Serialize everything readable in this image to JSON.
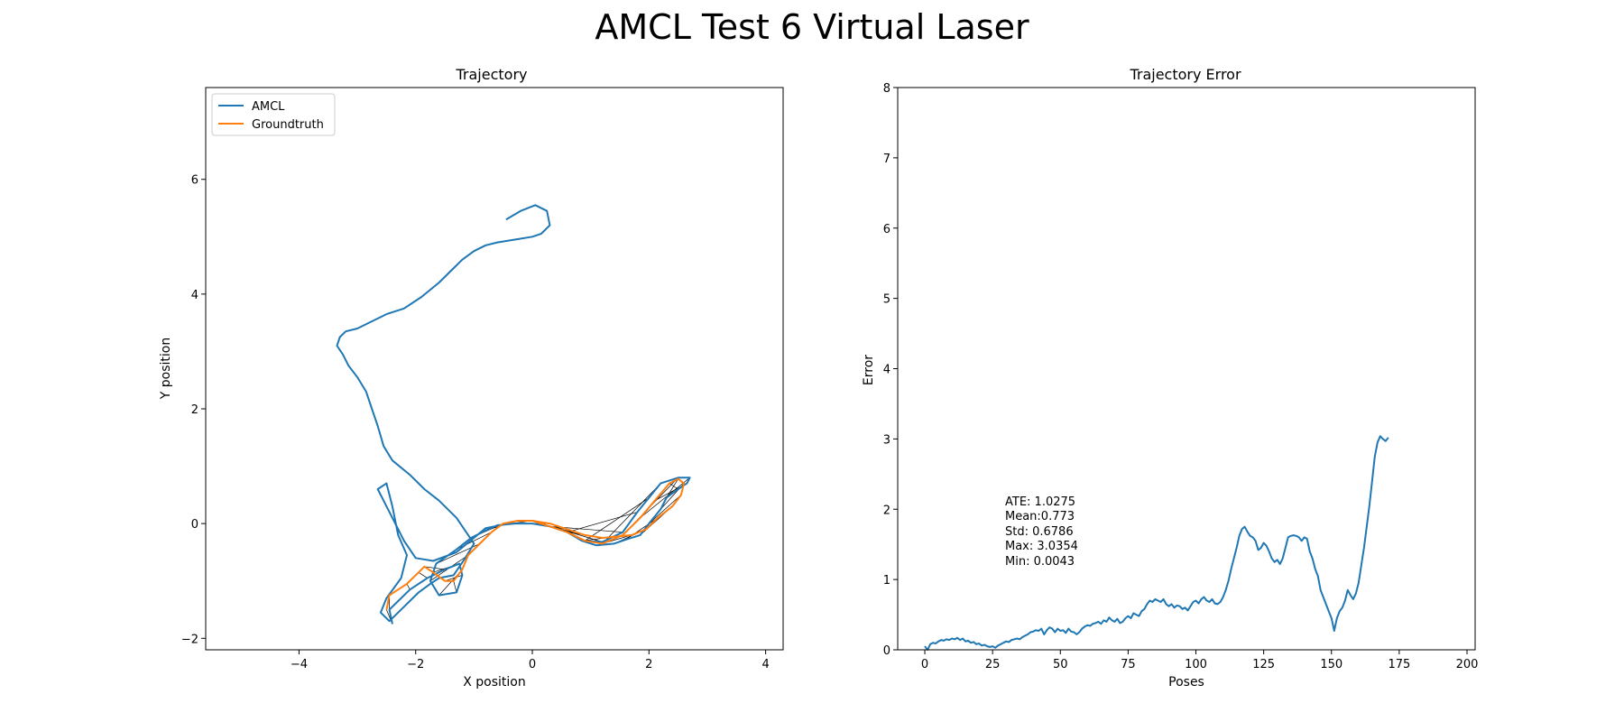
{
  "figure_title": "AMCL Test 6 Virtual Laser",
  "colors": {
    "amcl": "#1f77b4",
    "groundtruth": "#ff7f0e",
    "connector": "#000000"
  },
  "chart_data": [
    {
      "type": "line",
      "title": "Trajectory",
      "xlabel": "X position",
      "ylabel": "Y position",
      "xlim": [
        -5.6,
        4.3
      ],
      "ylim": [
        -2.2,
        7.6
      ],
      "xticks": [
        -4,
        -2,
        0,
        2,
        4
      ],
      "yticks": [
        -2,
        0,
        2,
        4,
        6
      ],
      "grid": false,
      "legend": {
        "position": "top-left",
        "entries": [
          "AMCL",
          "Groundtruth"
        ]
      },
      "connectors": true,
      "series": [
        {
          "name": "AMCL",
          "color": "#1f77b4",
          "points": [
            [
              -2.4,
              -1.75
            ],
            [
              -2.45,
              -1.5
            ],
            [
              -2.1,
              -1.15
            ],
            [
              -1.8,
              -0.95
            ],
            [
              -1.5,
              -0.8
            ],
            [
              -1.25,
              -0.7
            ],
            [
              -1.2,
              -0.9
            ],
            [
              -1.3,
              -1.2
            ],
            [
              -1.6,
              -1.25
            ],
            [
              -1.75,
              -1.0
            ],
            [
              -1.65,
              -0.7
            ],
            [
              -1.3,
              -0.45
            ],
            [
              -1.05,
              -0.25
            ],
            [
              -0.8,
              -0.12
            ],
            [
              -0.6,
              -0.03
            ],
            [
              -0.3,
              0.0
            ],
            [
              0.0,
              0.0
            ],
            [
              0.3,
              -0.05
            ],
            [
              0.6,
              -0.15
            ],
            [
              0.85,
              -0.3
            ],
            [
              1.1,
              -0.38
            ],
            [
              1.4,
              -0.35
            ],
            [
              1.6,
              -0.28
            ],
            [
              1.85,
              -0.2
            ],
            [
              2.0,
              0.0
            ],
            [
              2.2,
              0.25
            ],
            [
              2.3,
              0.45
            ],
            [
              2.5,
              0.6
            ],
            [
              2.65,
              0.7
            ],
            [
              2.7,
              0.8
            ],
            [
              2.5,
              0.8
            ],
            [
              2.2,
              0.7
            ],
            [
              2.0,
              0.45
            ],
            [
              1.8,
              0.2
            ],
            [
              1.55,
              -0.15
            ],
            [
              1.2,
              -0.32
            ],
            [
              0.9,
              -0.3
            ],
            [
              0.6,
              -0.15
            ],
            [
              0.3,
              -0.05
            ],
            [
              0.0,
              0.0
            ],
            [
              -0.4,
              0.0
            ],
            [
              -0.8,
              -0.08
            ],
            [
              -1.3,
              -0.5
            ],
            [
              -1.7,
              -0.65
            ],
            [
              -2.0,
              -0.6
            ],
            [
              -2.2,
              -0.3
            ],
            [
              -2.35,
              0.0
            ],
            [
              -2.5,
              0.3
            ],
            [
              -2.65,
              0.6
            ],
            [
              -2.5,
              0.7
            ],
            [
              -2.4,
              0.3
            ],
            [
              -2.3,
              -0.2
            ],
            [
              -2.15,
              -0.55
            ],
            [
              -2.25,
              -0.95
            ],
            [
              -2.5,
              -1.3
            ],
            [
              -2.6,
              -1.55
            ],
            [
              -2.45,
              -1.7
            ],
            [
              -2.2,
              -1.45
            ],
            [
              -1.95,
              -1.2
            ],
            [
              -1.75,
              -1.05
            ],
            [
              -1.6,
              -0.95
            ],
            [
              -1.35,
              -0.9
            ],
            [
              -1.15,
              -0.6
            ],
            [
              -1.0,
              -0.35
            ],
            [
              -1.3,
              0.1
            ],
            [
              -1.6,
              0.4
            ],
            [
              -1.85,
              0.6
            ],
            [
              -2.1,
              0.85
            ],
            [
              -2.4,
              1.1
            ],
            [
              -2.55,
              1.35
            ],
            [
              -2.65,
              1.7
            ],
            [
              -2.75,
              2.0
            ],
            [
              -2.85,
              2.3
            ],
            [
              -3.0,
              2.55
            ],
            [
              -3.15,
              2.75
            ],
            [
              -3.25,
              2.95
            ],
            [
              -3.35,
              3.1
            ],
            [
              -3.3,
              3.25
            ],
            [
              -3.2,
              3.35
            ],
            [
              -3.0,
              3.4
            ],
            [
              -2.8,
              3.5
            ],
            [
              -2.5,
              3.65
            ],
            [
              -2.2,
              3.75
            ],
            [
              -1.9,
              3.95
            ],
            [
              -1.6,
              4.2
            ],
            [
              -1.4,
              4.4
            ],
            [
              -1.2,
              4.6
            ],
            [
              -1.0,
              4.75
            ],
            [
              -0.8,
              4.85
            ],
            [
              -0.6,
              4.9
            ],
            [
              -0.3,
              4.95
            ],
            [
              0.0,
              5.0
            ],
            [
              0.15,
              5.05
            ],
            [
              0.3,
              5.2
            ],
            [
              0.25,
              5.45
            ],
            [
              0.05,
              5.55
            ],
            [
              -0.2,
              5.45
            ],
            [
              -0.45,
              5.3
            ]
          ]
        },
        {
          "name": "Groundtruth",
          "color": "#ff7f0e",
          "points": [
            [
              -2.5,
              -1.5
            ],
            [
              -2.45,
              -1.25
            ],
            [
              -2.15,
              -1.05
            ],
            [
              -1.95,
              -0.85
            ],
            [
              -1.85,
              -0.75
            ],
            [
              -1.7,
              -0.85
            ],
            [
              -1.5,
              -1.0
            ],
            [
              -1.35,
              -1.0
            ],
            [
              -1.2,
              -0.8
            ],
            [
              -1.1,
              -0.55
            ],
            [
              -0.9,
              -0.35
            ],
            [
              -0.7,
              -0.15
            ],
            [
              -0.5,
              0.0
            ],
            [
              -0.25,
              0.05
            ],
            [
              0.0,
              0.05
            ],
            [
              0.3,
              0.0
            ],
            [
              0.6,
              -0.1
            ],
            [
              0.9,
              -0.2
            ],
            [
              1.2,
              -0.25
            ],
            [
              1.5,
              -0.22
            ],
            [
              1.7,
              -0.2
            ],
            [
              1.95,
              -0.1
            ],
            [
              2.15,
              0.1
            ],
            [
              2.4,
              0.3
            ],
            [
              2.55,
              0.5
            ],
            [
              2.6,
              0.7
            ],
            [
              2.5,
              0.78
            ],
            [
              2.35,
              0.7
            ],
            [
              2.1,
              0.4
            ],
            [
              1.85,
              0.1
            ],
            [
              1.55,
              -0.2
            ],
            [
              1.2,
              -0.35
            ],
            [
              0.9,
              -0.3
            ],
            [
              0.6,
              -0.15
            ],
            [
              0.3,
              -0.05
            ],
            [
              0.0,
              0.05
            ]
          ]
        }
      ]
    },
    {
      "type": "line",
      "title": "Trajectory Error",
      "xlabel": "Poses",
      "ylabel": "Error",
      "xlim": [
        -10,
        203
      ],
      "ylim": [
        0,
        8
      ],
      "xticks": [
        0,
        25,
        50,
        75,
        100,
        125,
        150,
        175,
        200
      ],
      "yticks": [
        0,
        1,
        2,
        3,
        4,
        5,
        6,
        7,
        8
      ],
      "grid": false,
      "series": [
        {
          "name": "",
          "color": "#1f77b4",
          "x_start": 0,
          "values": [
            0.05,
            0.0,
            0.08,
            0.1,
            0.09,
            0.12,
            0.14,
            0.13,
            0.15,
            0.14,
            0.16,
            0.15,
            0.17,
            0.14,
            0.16,
            0.12,
            0.13,
            0.1,
            0.11,
            0.08,
            0.09,
            0.06,
            0.07,
            0.05,
            0.04,
            0.05,
            0.03,
            0.06,
            0.08,
            0.1,
            0.12,
            0.11,
            0.14,
            0.15,
            0.16,
            0.15,
            0.18,
            0.2,
            0.22,
            0.25,
            0.26,
            0.28,
            0.27,
            0.3,
            0.22,
            0.28,
            0.32,
            0.3,
            0.25,
            0.3,
            0.27,
            0.28,
            0.24,
            0.3,
            0.26,
            0.25,
            0.22,
            0.25,
            0.3,
            0.33,
            0.35,
            0.34,
            0.37,
            0.38,
            0.4,
            0.37,
            0.42,
            0.4,
            0.46,
            0.42,
            0.4,
            0.44,
            0.38,
            0.4,
            0.45,
            0.48,
            0.45,
            0.52,
            0.5,
            0.48,
            0.55,
            0.58,
            0.65,
            0.7,
            0.68,
            0.72,
            0.7,
            0.68,
            0.72,
            0.65,
            0.62,
            0.65,
            0.6,
            0.63,
            0.62,
            0.58,
            0.6,
            0.56,
            0.62,
            0.68,
            0.7,
            0.66,
            0.72,
            0.75,
            0.7,
            0.68,
            0.72,
            0.66,
            0.65,
            0.68,
            0.75,
            0.85,
            0.98,
            1.15,
            1.3,
            1.45,
            1.62,
            1.72,
            1.75,
            1.68,
            1.62,
            1.6,
            1.55,
            1.42,
            1.45,
            1.52,
            1.48,
            1.4,
            1.3,
            1.25,
            1.28,
            1.22,
            1.3,
            1.45,
            1.6,
            1.62,
            1.63,
            1.62,
            1.6,
            1.55,
            1.6,
            1.58,
            1.4,
            1.3,
            1.15,
            1.05,
            0.85,
            0.75,
            0.65,
            0.55,
            0.45,
            0.27,
            0.45,
            0.55,
            0.6,
            0.7,
            0.85,
            0.78,
            0.72,
            0.8,
            0.95,
            1.2,
            1.45,
            1.75,
            2.05,
            2.4,
            2.75,
            2.95,
            3.04,
            3.0,
            2.97,
            3.02
          ]
        }
      ],
      "stats": [
        "ATE: 1.0275",
        "Mean:0.773",
        "Std: 0.6786",
        "Max: 3.0354",
        "Min: 0.0043"
      ]
    }
  ]
}
